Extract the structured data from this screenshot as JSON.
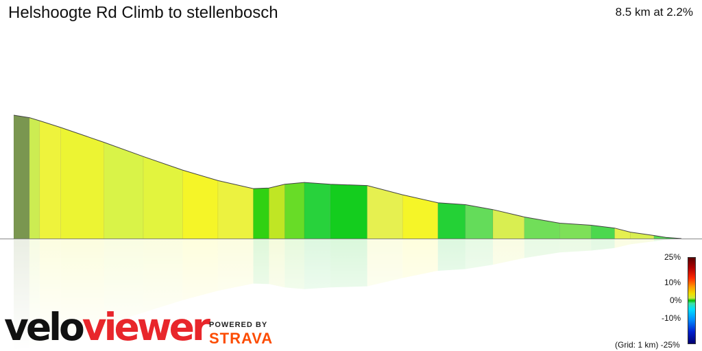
{
  "header": {
    "title": "Helshoogte Rd Climb to stellenbosch",
    "stats": "8.5 km at 2.2%"
  },
  "brand": {
    "velo": "velo",
    "viewer": "viewer",
    "powered_by": "POWERED BY",
    "strava": "STRAVA"
  },
  "legend": {
    "labels": [
      "25%",
      "10%",
      "0%",
      "-10%"
    ],
    "footer": "(Grid: 1 km) -25%"
  },
  "chart_data": {
    "type": "area",
    "title": "Helshoogte Rd Climb to stellenbosch",
    "x_unit": "km",
    "xlim": [
      0,
      8.5
    ],
    "grid_km": 1,
    "gradient_scale_percent": [
      -25,
      25
    ],
    "distance_km": [
      0,
      0.2,
      0.33,
      0.6,
      1.15,
      1.65,
      2.15,
      2.6,
      3.05,
      3.25,
      3.45,
      3.7,
      4.03,
      4.5,
      4.95,
      5.4,
      5.75,
      6.1,
      6.5,
      6.95,
      7.35,
      7.65,
      7.85,
      8.15,
      8.3,
      8.5
    ],
    "height_rel": [
      1.0,
      0.98,
      0.955,
      0.9,
      0.78,
      0.665,
      0.555,
      0.47,
      0.405,
      0.41,
      0.44,
      0.455,
      0.44,
      0.43,
      0.355,
      0.29,
      0.275,
      0.235,
      0.175,
      0.125,
      0.108,
      0.085,
      0.052,
      0.025,
      0.01,
      0.0
    ],
    "gradient_percent": [
      -1.5,
      -2.8,
      -3.5,
      -4.1,
      -4.3,
      -4.2,
      -4.0,
      -3.4,
      0.6,
      3.2,
      1.3,
      -1.0,
      -0.5,
      -3.0,
      -4.0,
      -0.9,
      -2.0,
      -2.9,
      -2.1,
      -2.2,
      -1.6,
      -3.0,
      -2.9,
      -1.8,
      -1.0
    ]
  }
}
